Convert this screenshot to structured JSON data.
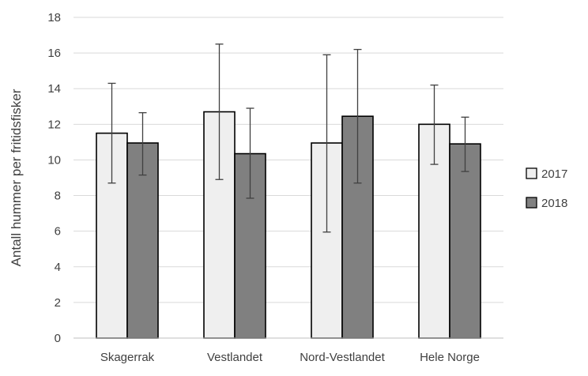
{
  "chart_data": {
    "type": "bar",
    "title": "",
    "xlabel": "",
    "ylabel": "Antall hummer per fritidsfisker",
    "ylim": [
      0,
      18
    ],
    "yticks": [
      0,
      2,
      4,
      6,
      8,
      10,
      12,
      14,
      16,
      18
    ],
    "grid": true,
    "legend_position": "right",
    "categories": [
      "Skagerrak",
      "Vestlandet",
      "Nord-Vestlandet",
      "Hele Norge"
    ],
    "series": [
      {
        "name": "2017",
        "color": "#efefef",
        "values": [
          11.5,
          12.7,
          10.95,
          12.0
        ],
        "error_low": [
          8.7,
          8.9,
          5.95,
          9.75
        ],
        "error_high": [
          14.3,
          16.5,
          15.9,
          14.2
        ]
      },
      {
        "name": "2018",
        "color": "#808080",
        "values": [
          10.95,
          10.35,
          12.45,
          10.9
        ],
        "error_low": [
          9.15,
          7.85,
          8.7,
          9.35
        ],
        "error_high": [
          12.65,
          12.9,
          16.2,
          12.4
        ]
      }
    ]
  }
}
